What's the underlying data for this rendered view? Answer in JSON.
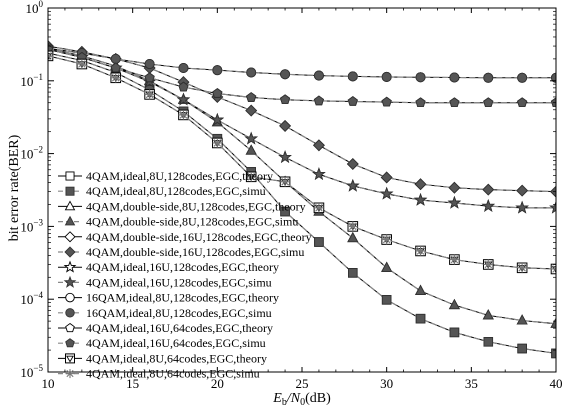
{
  "chart_data": {
    "type": "line",
    "xlabel": "E_b/N_0(dB)",
    "xlabel_main": "E",
    "xlabel_sub_b": "b",
    "xlabel_mid": "/N",
    "xlabel_sub_0": "0",
    "xlabel_unit": "(dB)",
    "ylabel": "bit error rate(BER)",
    "xscale": "linear",
    "yscale": "log",
    "xlim": [
      10,
      40
    ],
    "ylim": [
      1e-05,
      1
    ],
    "x_ticks": [
      10,
      15,
      20,
      25,
      30,
      35,
      40
    ],
    "x_tick_labels": [
      "10",
      "15",
      "20",
      "25",
      "30",
      "35",
      "40"
    ],
    "y_ticks": [
      1,
      0.1,
      0.01,
      0.001,
      0.0001,
      1e-05
    ],
    "y_tick_labels_base": [
      "10",
      "10",
      "10",
      "10",
      "10",
      "10"
    ],
    "y_tick_labels_exp": [
      "0",
      "−1",
      "−2",
      "−3",
      "−4",
      "−5"
    ],
    "grid": false,
    "legend_position": "bottom-left",
    "x": [
      10,
      12,
      14,
      16,
      18,
      20,
      22,
      24,
      26,
      28,
      30,
      32,
      34,
      36,
      38,
      40
    ],
    "series": [
      {
        "name": "4QAM,ideal,8U,128codes,EGC,theory",
        "marker": "square-open",
        "line": "solid",
        "values": [
          0.24,
          0.19,
          0.13,
          0.075,
          0.038,
          0.016,
          0.0056,
          0.0016,
          0.00061,
          0.00023,
          9.8e-05,
          5.4e-05,
          3.5e-05,
          2.6e-05,
          2.1e-05,
          1.8e-05
        ]
      },
      {
        "name": "4QAM,ideal,8U,128codes,EGC,simu",
        "marker": "square-filled",
        "line": "dashed",
        "values": [
          0.24,
          0.19,
          0.13,
          0.075,
          0.038,
          0.016,
          0.0056,
          0.0016,
          0.00061,
          0.00023,
          9.8e-05,
          5.4e-05,
          3.5e-05,
          2.6e-05,
          2.1e-05,
          1.8e-05
        ]
      },
      {
        "name": "4QAM,double-side,8U,128codes,EGC,theory",
        "marker": "triangle-open",
        "line": "solid",
        "values": [
          0.28,
          0.22,
          0.16,
          0.1,
          0.055,
          0.027,
          0.011,
          0.0041,
          0.0016,
          0.00069,
          0.00027,
          0.00013,
          8.3e-05,
          6e-05,
          5.1e-05,
          4.6e-05
        ]
      },
      {
        "name": "4QAM,double-side,8U,128codes,EGC,simu",
        "marker": "triangle-filled",
        "line": "dashed",
        "values": [
          0.28,
          0.22,
          0.16,
          0.1,
          0.055,
          0.027,
          0.011,
          0.0041,
          0.0016,
          0.00069,
          0.00027,
          0.00013,
          8.3e-05,
          6e-05,
          5.1e-05,
          4.6e-05
        ]
      },
      {
        "name": "4QAM,double-side,16U,128codes,EGC,theory",
        "marker": "diamond-open",
        "line": "solid",
        "values": [
          0.3,
          0.25,
          0.2,
          0.15,
          0.096,
          0.06,
          0.039,
          0.024,
          0.013,
          0.0072,
          0.0047,
          0.0038,
          0.0034,
          0.0032,
          0.0031,
          0.003
        ]
      },
      {
        "name": "4QAM,double-side,16U,128codes,EGC,simu",
        "marker": "diamond-filled",
        "line": "dashed",
        "values": [
          0.3,
          0.25,
          0.2,
          0.15,
          0.096,
          0.06,
          0.039,
          0.024,
          0.013,
          0.0072,
          0.0047,
          0.0038,
          0.0034,
          0.0032,
          0.0031,
          0.003
        ]
      },
      {
        "name": "4QAM,ideal,16U,128codes,EGC,theory",
        "marker": "star-open",
        "line": "solid",
        "values": [
          0.27,
          0.21,
          0.15,
          0.097,
          0.055,
          0.029,
          0.016,
          0.0089,
          0.0052,
          0.0036,
          0.0028,
          0.0023,
          0.0021,
          0.0019,
          0.0018,
          0.0018
        ]
      },
      {
        "name": "4QAM,ideal,16U,128codes,EGC,simu",
        "marker": "star-filled",
        "line": "dashed",
        "values": [
          0.27,
          0.21,
          0.15,
          0.097,
          0.055,
          0.029,
          0.016,
          0.0089,
          0.0052,
          0.0036,
          0.0028,
          0.0023,
          0.0021,
          0.0019,
          0.0018,
          0.0018
        ]
      },
      {
        "name": "16QAM,ideal,8U,128codes,EGC,theory",
        "marker": "circle-open",
        "line": "solid",
        "values": [
          0.28,
          0.24,
          0.2,
          0.17,
          0.15,
          0.14,
          0.13,
          0.123,
          0.118,
          0.115,
          0.113,
          0.112,
          0.111,
          0.11,
          0.11,
          0.11
        ]
      },
      {
        "name": "16QAM,ideal,8U,128codes,EGC,simu",
        "marker": "circle-filled",
        "line": "dashed",
        "values": [
          0.28,
          0.24,
          0.2,
          0.17,
          0.15,
          0.14,
          0.13,
          0.123,
          0.118,
          0.115,
          0.113,
          0.112,
          0.111,
          0.11,
          0.11,
          0.11
        ]
      },
      {
        "name": "4QAM,ideal,16U,64codes,EGC,theory",
        "marker": "pentagon-open",
        "line": "solid",
        "values": [
          0.27,
          0.21,
          0.15,
          0.11,
          0.082,
          0.067,
          0.059,
          0.055,
          0.053,
          0.052,
          0.051,
          0.05,
          0.05,
          0.05,
          0.05,
          0.05
        ]
      },
      {
        "name": "4QAM,ideal,16U,64codes,EGC,simu",
        "marker": "pentagon-filled",
        "line": "dashed",
        "values": [
          0.27,
          0.21,
          0.15,
          0.11,
          0.082,
          0.067,
          0.059,
          0.055,
          0.053,
          0.052,
          0.051,
          0.05,
          0.05,
          0.05,
          0.05,
          0.05
        ]
      },
      {
        "name": "4QAM,ideal,8U,64codes,EGC,theory",
        "marker": "square-tri-open",
        "line": "solid",
        "values": [
          0.22,
          0.17,
          0.11,
          0.065,
          0.034,
          0.014,
          0.0048,
          0.0041,
          0.0018,
          0.001,
          0.00066,
          0.00046,
          0.00035,
          0.0003,
          0.00027,
          0.00026
        ]
      },
      {
        "name": "4QAM,ideal,8U,64codes,EGC,simu",
        "marker": "star-thin",
        "line": "dashed",
        "values": [
          0.22,
          0.17,
          0.11,
          0.065,
          0.034,
          0.014,
          0.0048,
          0.0041,
          0.0018,
          0.001,
          0.00066,
          0.00046,
          0.00035,
          0.0003,
          0.00027,
          0.00026
        ]
      }
    ]
  }
}
